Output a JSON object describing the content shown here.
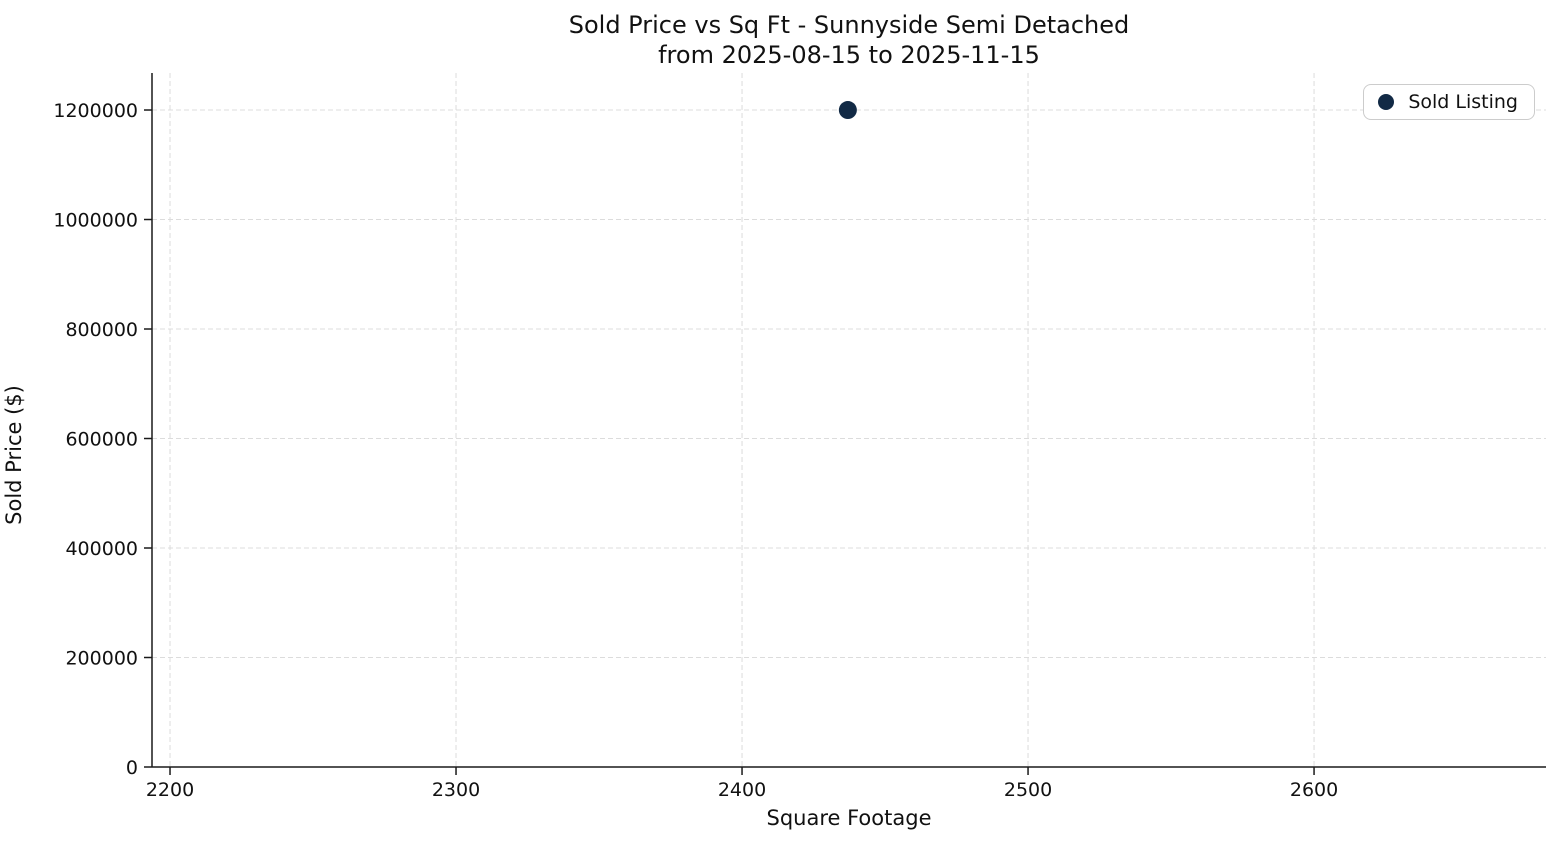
{
  "chart_data": {
    "type": "scatter",
    "title": "Sold Price vs Sq Ft - Sunnyside Semi Detached",
    "subtitle": "from 2025-08-15 to 2025-11-15",
    "xlabel": "Square Footage",
    "ylabel": "Sold Price ($)",
    "xlim": [
      2193.7,
      2681.1
    ],
    "ylim": [
      0,
      1267600
    ],
    "x_ticks": [
      2200,
      2300,
      2400,
      2500,
      2600
    ],
    "y_ticks": [
      0,
      200000,
      400000,
      600000,
      800000,
      1000000,
      1200000
    ],
    "grid": {
      "visible": true,
      "style": "dashed",
      "color": "#dcdcdc"
    },
    "spine_color": "#1a1a1a",
    "legend": {
      "position": "upper right",
      "entries": [
        {
          "label": "Sold Listing",
          "marker": "circle",
          "marker_color": "#122a45"
        }
      ]
    },
    "series": [
      {
        "name": "Sold Listing",
        "color": "#122a45",
        "marker_radius": 9,
        "points": [
          {
            "x": 2437,
            "y": 1200000
          }
        ]
      }
    ]
  }
}
